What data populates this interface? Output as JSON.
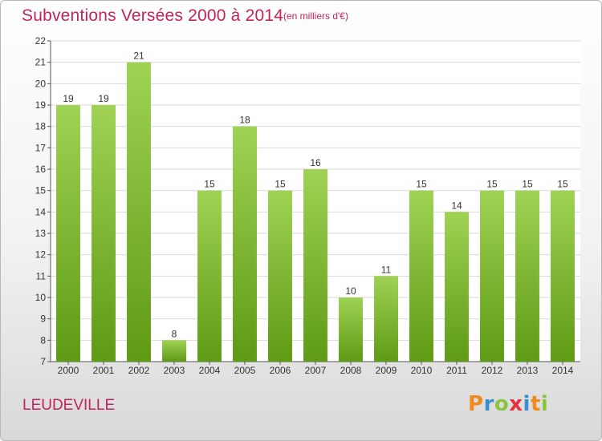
{
  "header": {
    "title": "Subventions Versées 2000 à 2014",
    "subtitle": "(en milliers d'€)"
  },
  "footer": {
    "commune": "LEUDEVILLE",
    "logo_letters": [
      "P",
      "r",
      "o",
      "x",
      "i",
      "t",
      "i"
    ],
    "logo_colors": [
      "#f08a1e",
      "#3a8fd0",
      "#8bc43f",
      "#e8303a",
      "#3a8fd0",
      "#f08a1e",
      "#8bc43f"
    ]
  },
  "colors": {
    "title": "#c0245c",
    "bar_top": "#9fd255",
    "bar_bottom": "#5e9a14",
    "grid": "#d9d9d9"
  },
  "chart_data": {
    "type": "bar",
    "categories": [
      "2000",
      "2001",
      "2002",
      "2003",
      "2004",
      "2005",
      "2006",
      "2007",
      "2008",
      "2009",
      "2010",
      "2011",
      "2012",
      "2013",
      "2014"
    ],
    "values": [
      19,
      19,
      21,
      8,
      15,
      18,
      15,
      16,
      10,
      11,
      15,
      14,
      15,
      15,
      15
    ],
    "ylim": [
      7,
      22
    ],
    "yticks": [
      7,
      8,
      9,
      10,
      11,
      12,
      13,
      14,
      15,
      16,
      17,
      18,
      19,
      20,
      21,
      22
    ],
    "data_labels": true,
    "grid": true
  }
}
